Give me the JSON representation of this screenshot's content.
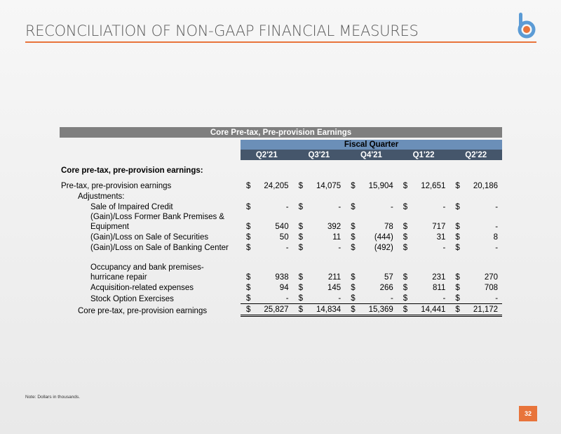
{
  "header": {
    "title": "RECONCILIATION OF NON-GAAP FINANCIAL MEASURES"
  },
  "table": {
    "title": "Core Pre-tax, Pre-provision Earnings",
    "group_header": "Fiscal Quarter",
    "columns": [
      "Q2'21",
      "Q3'21",
      "Q4'21",
      "Q1'22",
      "Q2'22"
    ],
    "section": "Core pre-tax, pre-provision earnings:",
    "currency": "$",
    "rows": [
      {
        "label": "Pre-tax, pre-provision earnings",
        "values": [
          "24,205",
          "14,075",
          "15,904",
          "12,651",
          "20,186"
        ]
      },
      {
        "label": "Adjustments:"
      },
      {
        "label": "Sale of Impaired Credit",
        "values": [
          "-",
          "-",
          "-",
          "-",
          "-"
        ]
      },
      {
        "label": "(Gain)/Loss Former Bank Premises & Equipment",
        "values": [
          "540",
          "392",
          "78",
          "717",
          "-"
        ]
      },
      {
        "label": "(Gain)/Loss on Sale of Securities",
        "values": [
          "50",
          "11",
          "(444)",
          "31",
          "8"
        ]
      },
      {
        "label": "(Gain)/Loss on Sale of Banking Center",
        "values": [
          "-",
          "-",
          "(492)",
          "-",
          "-"
        ]
      },
      {
        "label": "Occupancy and bank premises- hurricane repair",
        "values": [
          "938",
          "211",
          "57",
          "231",
          "270"
        ]
      },
      {
        "label": "Acquisition-related expenses",
        "values": [
          "94",
          "145",
          "266",
          "811",
          "708"
        ]
      },
      {
        "label": "Stock Option Exercises",
        "values": [
          "-",
          "-",
          "-",
          "-",
          "-"
        ]
      },
      {
        "label": "Core pre-tax, pre-provision earnings",
        "values": [
          "25,827",
          "14,834",
          "15,369",
          "14,441",
          "21,172"
        ]
      }
    ]
  },
  "note": "Note: Dollars in thousands.",
  "page_number": "32"
}
